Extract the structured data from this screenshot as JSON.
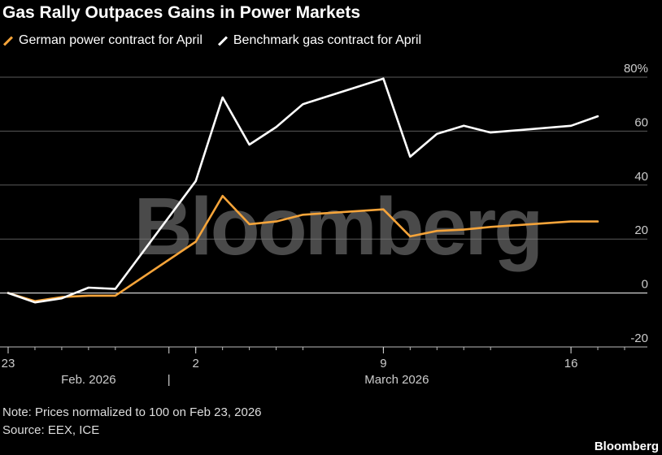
{
  "title": "Gas Rally Outpaces Gains in Power Markets",
  "colors": {
    "power": "#f5a43a",
    "gas": "#ffffff",
    "grid": "#5a5a5a",
    "zero": "#cfcfcf"
  },
  "watermark": "Bloomberg",
  "note": "Note: Prices normalized to 100 on Feb 23, 2026",
  "source": "Source: EEX, ICE",
  "brand": "Bloomberg",
  "chart_data": {
    "type": "line",
    "y_unit_suffix": "%",
    "ylim": [
      -20,
      80
    ],
    "yticks": [
      -20,
      0,
      20,
      40,
      60,
      80
    ],
    "ytick_labels": [
      "-20",
      "0",
      "20",
      "40",
      "60",
      "80%"
    ],
    "xlim": [
      "2026-02-23",
      "2026-03-18"
    ],
    "xticks": [
      {
        "date": "2026-02-23",
        "label": "23"
      },
      {
        "date": "2026-03-02",
        "label": "2"
      },
      {
        "date": "2026-03-09",
        "label": "9"
      },
      {
        "date": "2026-03-16",
        "label": "16"
      }
    ],
    "month_labels": [
      {
        "label": "Feb. 2026",
        "month": "2026-02"
      },
      {
        "label": "March 2026",
        "month": "2026-03"
      }
    ],
    "grid": true,
    "legend_placement": "top-left",
    "series": [
      {
        "name": "German power contract for April",
        "color": "#f5a43a",
        "points": [
          [
            "2026-02-23",
            0
          ],
          [
            "2026-02-24",
            -3
          ],
          [
            "2026-02-25",
            -1.5
          ],
          [
            "2026-02-26",
            -1
          ],
          [
            "2026-02-27",
            -1
          ],
          [
            "2026-03-02",
            19
          ],
          [
            "2026-03-03",
            36
          ],
          [
            "2026-03-04",
            25.5
          ],
          [
            "2026-03-05",
            26.5
          ],
          [
            "2026-03-06",
            29
          ],
          [
            "2026-03-09",
            31
          ],
          [
            "2026-03-10",
            21
          ],
          [
            "2026-03-11",
            23
          ],
          [
            "2026-03-12",
            23.5
          ],
          [
            "2026-03-13",
            24.5
          ],
          [
            "2026-03-16",
            26.5
          ],
          [
            "2026-03-17",
            26.5
          ]
        ]
      },
      {
        "name": "Benchmark gas contract for April",
        "color": "#ffffff",
        "points": [
          [
            "2026-02-23",
            0
          ],
          [
            "2026-02-24",
            -3.5
          ],
          [
            "2026-02-25",
            -2
          ],
          [
            "2026-02-26",
            2
          ],
          [
            "2026-02-27",
            1.5
          ],
          [
            "2026-03-02",
            41.5
          ],
          [
            "2026-03-03",
            72.5
          ],
          [
            "2026-03-04",
            55
          ],
          [
            "2026-03-05",
            61.5
          ],
          [
            "2026-03-06",
            70
          ],
          [
            "2026-03-09",
            79.5
          ],
          [
            "2026-03-10",
            50.5
          ],
          [
            "2026-03-11",
            59
          ],
          [
            "2026-03-12",
            62
          ],
          [
            "2026-03-13",
            59.5
          ],
          [
            "2026-03-16",
            62
          ],
          [
            "2026-03-17",
            65.5
          ]
        ]
      }
    ]
  }
}
